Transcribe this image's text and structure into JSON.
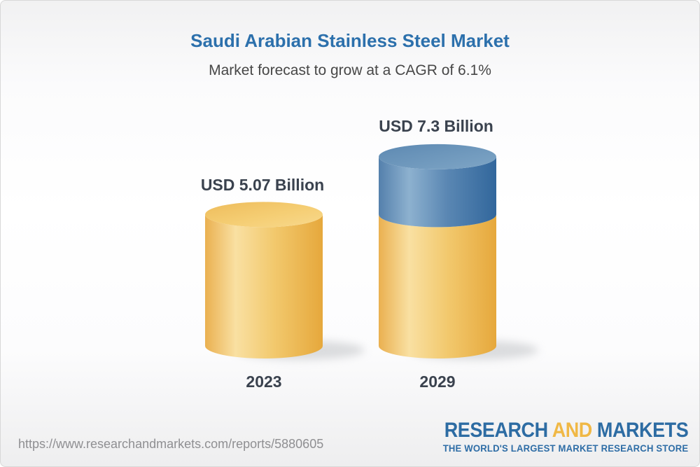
{
  "header": {
    "title": "Saudi Arabian Stainless Steel Market",
    "subtitle": "Market forecast to grow at a CAGR of 6.1%"
  },
  "chart_data": {
    "type": "bar",
    "subtype": "3d-cylinder",
    "categories": [
      "2023",
      "2029"
    ],
    "values": [
      5.07,
      7.3
    ],
    "value_labels": [
      "USD 5.07 Billion",
      "USD 7.3 Billion"
    ],
    "unit": "USD Billion",
    "cagr_percent": 6.1,
    "legend": "none",
    "grid": false,
    "colors": {
      "base_segment_gold": "#F0BE5C",
      "growth_segment_blue": "#4C7EAC",
      "title_blue": "#2C70AC",
      "label_dark": "#3A424E"
    }
  },
  "footer": {
    "url": "https://www.researchandmarkets.com/reports/5880605",
    "logo": {
      "part1": "RESEARCH",
      "part2": "AND",
      "part3": "MARKETS",
      "tagline": "THE WORLD'S LARGEST MARKET RESEARCH STORE"
    }
  }
}
